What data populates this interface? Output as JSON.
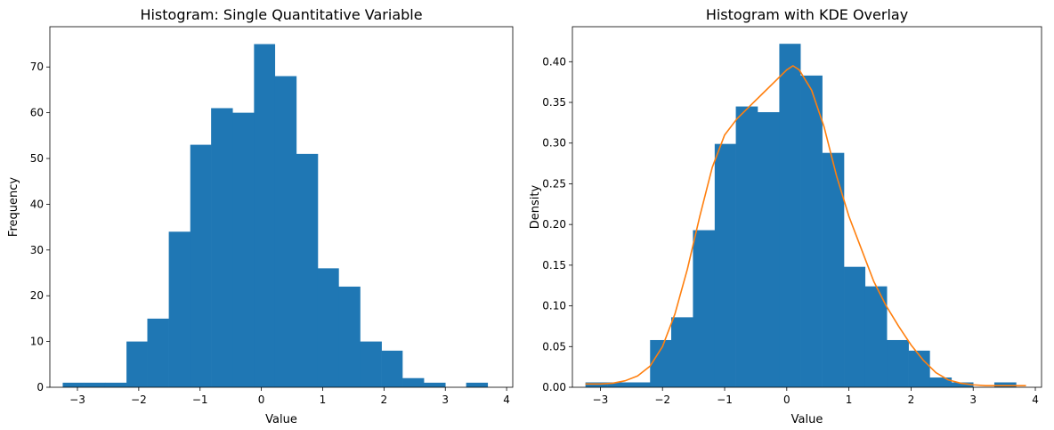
{
  "chart_data": [
    {
      "type": "bar",
      "title": "Histogram: Single Quantitative Variable",
      "xlabel": "Value",
      "ylabel": "Frequency",
      "xlim": [
        -3.45,
        4.1
      ],
      "ylim": [
        0,
        78.8
      ],
      "xticks": [
        -3,
        -2,
        -1,
        0,
        1,
        2,
        3,
        4
      ],
      "yticks": [
        0,
        10,
        20,
        30,
        40,
        50,
        60,
        70
      ],
      "bar_color": "#1f77b4",
      "bins": [
        {
          "x0": -3.24,
          "x1": -2.89,
          "value": 1
        },
        {
          "x0": -2.89,
          "x1": -2.55,
          "value": 1
        },
        {
          "x0": -2.55,
          "x1": -2.2,
          "value": 1
        },
        {
          "x0": -2.2,
          "x1": -1.86,
          "value": 10
        },
        {
          "x0": -1.86,
          "x1": -1.51,
          "value": 15
        },
        {
          "x0": -1.51,
          "x1": -1.16,
          "value": 34
        },
        {
          "x0": -1.16,
          "x1": -0.82,
          "value": 53
        },
        {
          "x0": -0.82,
          "x1": -0.47,
          "value": 61
        },
        {
          "x0": -0.47,
          "x1": -0.12,
          "value": 60
        },
        {
          "x0": -0.12,
          "x1": 0.22,
          "value": 75
        },
        {
          "x0": 0.22,
          "x1": 0.57,
          "value": 68
        },
        {
          "x0": 0.57,
          "x1": 0.92,
          "value": 51
        },
        {
          "x0": 0.92,
          "x1": 1.26,
          "value": 26
        },
        {
          "x0": 1.26,
          "x1": 1.61,
          "value": 22
        },
        {
          "x0": 1.61,
          "x1": 1.96,
          "value": 10
        },
        {
          "x0": 1.96,
          "x1": 2.3,
          "value": 8
        },
        {
          "x0": 2.3,
          "x1": 2.65,
          "value": 2
        },
        {
          "x0": 2.65,
          "x1": 3.0,
          "value": 1
        },
        {
          "x0": 3.0,
          "x1": 3.34,
          "value": 0
        },
        {
          "x0": 3.34,
          "x1": 3.69,
          "value": 1
        }
      ]
    },
    {
      "type": "bar",
      "title": "Histogram with KDE Overlay",
      "xlabel": "Value",
      "ylabel": "Density",
      "xlim": [
        -3.45,
        4.1
      ],
      "ylim": [
        0,
        0.443
      ],
      "xticks": [
        -3,
        -2,
        -1,
        0,
        1,
        2,
        3,
        4
      ],
      "yticks": [
        0.0,
        0.05,
        0.1,
        0.15,
        0.2,
        0.25,
        0.3,
        0.35,
        0.4
      ],
      "ytick_format": 2,
      "bar_color": "#1f77b4",
      "line_color": "#ff7f0e",
      "bins": [
        {
          "x0": -3.24,
          "x1": -2.89,
          "value": 0.006
        },
        {
          "x0": -2.89,
          "x1": -2.55,
          "value": 0.006
        },
        {
          "x0": -2.55,
          "x1": -2.2,
          "value": 0.006
        },
        {
          "x0": -2.2,
          "x1": -1.86,
          "value": 0.058
        },
        {
          "x0": -1.86,
          "x1": -1.51,
          "value": 0.086
        },
        {
          "x0": -1.51,
          "x1": -1.16,
          "value": 0.193
        },
        {
          "x0": -1.16,
          "x1": -0.82,
          "value": 0.299
        },
        {
          "x0": -0.82,
          "x1": -0.47,
          "value": 0.345
        },
        {
          "x0": -0.47,
          "x1": -0.12,
          "value": 0.338
        },
        {
          "x0": -0.12,
          "x1": 0.22,
          "value": 0.422
        },
        {
          "x0": 0.22,
          "x1": 0.57,
          "value": 0.383
        },
        {
          "x0": 0.57,
          "x1": 0.92,
          "value": 0.288
        },
        {
          "x0": 0.92,
          "x1": 1.26,
          "value": 0.148
        },
        {
          "x0": 1.26,
          "x1": 1.61,
          "value": 0.124
        },
        {
          "x0": 1.61,
          "x1": 1.96,
          "value": 0.058
        },
        {
          "x0": 1.96,
          "x1": 2.3,
          "value": 0.045
        },
        {
          "x0": 2.3,
          "x1": 2.65,
          "value": 0.012
        },
        {
          "x0": 2.65,
          "x1": 3.0,
          "value": 0.006
        },
        {
          "x0": 3.0,
          "x1": 3.34,
          "value": 0.0
        },
        {
          "x0": 3.34,
          "x1": 3.69,
          "value": 0.006
        }
      ],
      "kde": {
        "x": [
          -3.24,
          -3.0,
          -2.8,
          -2.6,
          -2.4,
          -2.2,
          -2.0,
          -1.8,
          -1.6,
          -1.4,
          -1.2,
          -1.0,
          -0.8,
          -0.6,
          -0.4,
          -0.2,
          0.0,
          0.1,
          0.2,
          0.4,
          0.6,
          0.8,
          1.0,
          1.2,
          1.4,
          1.6,
          1.8,
          2.0,
          2.2,
          2.4,
          2.6,
          2.8,
          3.0,
          3.2,
          3.5,
          3.85
        ],
        "y": [
          0.004,
          0.004,
          0.005,
          0.008,
          0.014,
          0.026,
          0.05,
          0.09,
          0.145,
          0.21,
          0.27,
          0.31,
          0.33,
          0.345,
          0.36,
          0.375,
          0.39,
          0.395,
          0.39,
          0.365,
          0.32,
          0.26,
          0.21,
          0.17,
          0.13,
          0.1,
          0.075,
          0.052,
          0.033,
          0.018,
          0.009,
          0.005,
          0.003,
          0.002,
          0.002,
          0.002
        ]
      }
    }
  ]
}
